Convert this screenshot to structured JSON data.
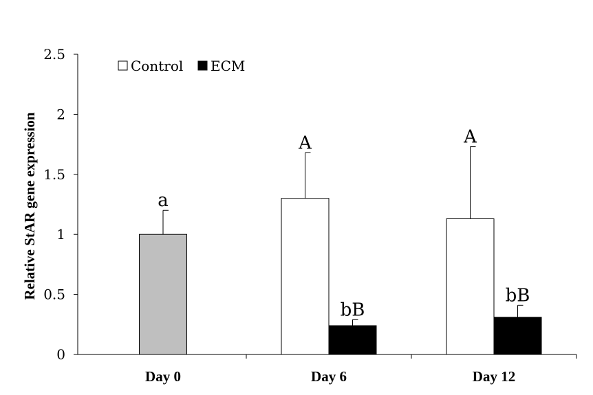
{
  "chart_data": {
    "type": "bar",
    "title": "",
    "xlabel": "",
    "ylabel": "Relative StAR gene expression",
    "ylim": [
      0,
      2.5
    ],
    "yticks": [
      0,
      0.5,
      1,
      1.5,
      2,
      2.5
    ],
    "ytick_labels": [
      "0",
      "0.5",
      "1",
      "1.5",
      "2",
      "2.5"
    ],
    "grid": false,
    "legend_position": "top-left",
    "categories": [
      "Day 0",
      "Day 6",
      "Day 12"
    ],
    "series": [
      {
        "name": "Day 0",
        "color": "#bfbfbf",
        "in_legend": false,
        "values": [
          1.0,
          null,
          null
        ],
        "errors": [
          0.2,
          null,
          null
        ],
        "labels": [
          "a",
          null,
          null
        ]
      },
      {
        "name": "Control",
        "color": "#ffffff",
        "in_legend": true,
        "values": [
          null,
          1.3,
          1.13
        ],
        "errors": [
          null,
          0.38,
          0.6
        ],
        "labels": [
          null,
          "A",
          "A"
        ]
      },
      {
        "name": "ECM",
        "color": "#000000",
        "in_legend": true,
        "values": [
          null,
          0.24,
          0.31
        ],
        "errors": [
          null,
          0.05,
          0.1
        ],
        "labels": [
          null,
          "bB",
          "bB"
        ]
      }
    ]
  }
}
